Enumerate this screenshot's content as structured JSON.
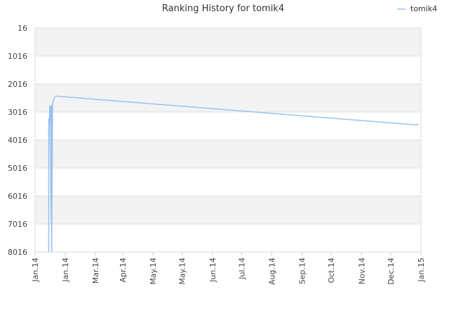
{
  "chart_data": {
    "type": "line",
    "title": "Ranking History for tomik4",
    "xlabel": "",
    "ylabel": "",
    "y_inverted": true,
    "ylim": [
      16,
      8016
    ],
    "y_ticks": [
      16,
      1016,
      2016,
      3016,
      4016,
      5016,
      6016,
      7016,
      8016
    ],
    "y_tick_labels": [
      "16",
      "1016",
      "2016",
      "3016",
      "4016",
      "5016",
      "6016",
      "7016",
      "8016"
    ],
    "xlim": [
      "2013-12-01",
      "2015-01-01"
    ],
    "x_ticks": [
      "2013-12-01",
      "2014-01-01",
      "2014-02-01",
      "2014-03-01",
      "2014-04-01",
      "2014-05-01",
      "2014-06-01",
      "2014-07-01",
      "2014-08-01",
      "2014-09-01",
      "2014-10-01",
      "2014-11-01",
      "2014-12-01",
      "2015-01-01"
    ],
    "x_tick_labels": [
      "Jan.14",
      "Jan.14",
      "Mar.14",
      "Apr.14",
      "May.14",
      "May.14",
      "Jun.14",
      "Jul.14",
      "Aug.14",
      "Sep.14",
      "Oct.14",
      "Nov.14",
      "Dec.14",
      "Jan.15"
    ],
    "grid": true,
    "banded_background": true,
    "legend_position": "top-right",
    "series": [
      {
        "name": "tomik4",
        "color": "#99c2f0",
        "points": [
          {
            "x": "2013-12-15",
            "y": 8016
          },
          {
            "x": "2013-12-15",
            "y": 3260
          },
          {
            "x": "2013-12-15",
            "y": 4800
          },
          {
            "x": "2013-12-16",
            "y": 2800
          },
          {
            "x": "2013-12-17",
            "y": 3500
          },
          {
            "x": "2013-12-17",
            "y": 2800
          },
          {
            "x": "2013-12-17",
            "y": 5700
          },
          {
            "x": "2013-12-18",
            "y": 7400
          },
          {
            "x": "2013-12-18",
            "y": 2780
          },
          {
            "x": "2013-12-18",
            "y": 8016
          },
          {
            "x": "2013-12-19",
            "y": 2700
          },
          {
            "x": "2013-12-20",
            "y": 2590
          },
          {
            "x": "2013-12-21",
            "y": 2480
          },
          {
            "x": "2013-12-23",
            "y": 2450
          },
          {
            "x": "2014-12-28",
            "y": 3480
          },
          {
            "x": "2014-12-29",
            "y": 3430
          }
        ]
      }
    ]
  }
}
